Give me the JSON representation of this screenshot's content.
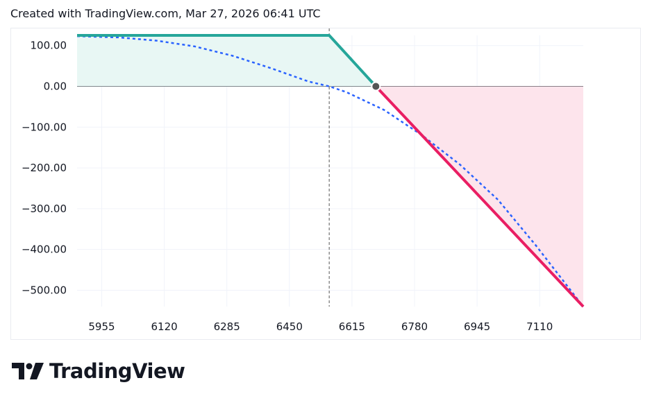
{
  "header": {
    "text": "Created with TradingView.com, Mar 27, 2026 06:41 UTC"
  },
  "logo": {
    "text": "TradingView",
    "icon": "tradingview-logo-icon"
  },
  "colors": {
    "profit_line": "#26a69a",
    "profit_fill": "#e8f7f4",
    "loss_line": "#e91e63",
    "loss_fill": "#fde4ec",
    "theoretical_line": "#2962ff",
    "grid": "#f0f3fa",
    "zero_line": "#131722"
  },
  "chart_data": {
    "type": "line",
    "x_ticks": [
      5955,
      6120,
      6285,
      6450,
      6615,
      6780,
      6945,
      7110
    ],
    "y_ticks": [
      100,
      0,
      -100,
      -200,
      -300,
      -400,
      -500
    ],
    "y_tick_labels": [
      "100.00",
      "0.00",
      "−100.00",
      "−200.00",
      "−300.00",
      "−400.00",
      "−500.00"
    ],
    "xlim": [
      5890,
      7225
    ],
    "ylim": [
      -540,
      125
    ],
    "current_price_marker": 6555,
    "breakeven_point": {
      "x": 6678,
      "y": 0
    },
    "series": [
      {
        "name": "",
        "style": "solid",
        "points": [
          [
            5890,
            125
          ],
          [
            6555,
            125
          ],
          [
            6678,
            0
          ],
          [
            7225,
            -540
          ]
        ]
      },
      {
        "name": "",
        "style": "dashed",
        "points": [
          [
            5890,
            123
          ],
          [
            6000,
            120
          ],
          [
            6100,
            112
          ],
          [
            6200,
            98
          ],
          [
            6300,
            75
          ],
          [
            6400,
            45
          ],
          [
            6500,
            12
          ],
          [
            6555,
            0
          ],
          [
            6600,
            -14
          ],
          [
            6700,
            -58
          ],
          [
            6800,
            -120
          ],
          [
            6900,
            -192
          ],
          [
            7000,
            -278
          ],
          [
            7100,
            -390
          ],
          [
            7225,
            -540
          ]
        ]
      }
    ]
  }
}
